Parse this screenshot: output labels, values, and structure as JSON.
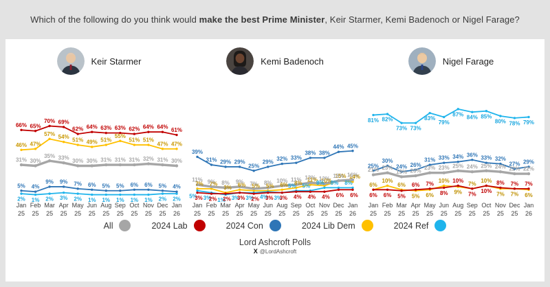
{
  "title": {
    "prefix": "Which of the following do you think would ",
    "bold": "make the best Prime Minister",
    "suffix": ", Keir Starmer, Kemi Badenoch or Nigel Farage?"
  },
  "legend": [
    {
      "label": "All",
      "color": "#a6a6a6"
    },
    {
      "label": "2024 Lab",
      "color": "#c00000"
    },
    {
      "label": "2024 Con",
      "color": "#2e75b6"
    },
    {
      "label": "2024 Lib Dem",
      "color": "#ffc000"
    },
    {
      "label": "2024 Ref",
      "color": "#1fb4ec"
    }
  ],
  "footer": {
    "brand": "Lord Ashcroft Polls",
    "x_icon": "X",
    "handle": "@LordAshcroft"
  },
  "chart_data": [
    {
      "type": "line",
      "title": "Keir Starmer",
      "x": [
        "Jan 25",
        "Feb 25",
        "Mar 25",
        "Apr 25",
        "May 25",
        "Jun 25",
        "Aug 25",
        "Sep 25",
        "Oct 25",
        "Nov 25",
        "Dec 25",
        "Jan 26"
      ],
      "ylim": [
        0,
        90
      ],
      "grid": false,
      "legend_position": "bottom",
      "series": [
        {
          "name": "2024 Lib Dem",
          "color": "#ffc000",
          "label_color": "#c99700",
          "label_pos": "above",
          "values": [
            46,
            47,
            57,
            54,
            51,
            49,
            51,
            55,
            51,
            51,
            47,
            47
          ]
        },
        {
          "name": "2024 Ref",
          "color": "#1fb4ec",
          "label_color": "#1aa7e0",
          "label_pos": "below",
          "values": [
            2,
            1,
            2,
            3,
            2,
            1,
            1,
            1,
            1,
            1,
            2,
            2
          ]
        },
        {
          "name": "2024 Lab",
          "color": "#c00000",
          "label_color": "#c00000",
          "label_pos": "above",
          "values": [
            66,
            65,
            70,
            69,
            62,
            64,
            63,
            63,
            62,
            64,
            64,
            61
          ]
        },
        {
          "name": "2024 Con",
          "color": "#2e75b6",
          "label_color": "#2e75b6",
          "label_pos": "above",
          "values": [
            5,
            4,
            9,
            9,
            7,
            6,
            5,
            5,
            6,
            6,
            5,
            4
          ]
        },
        {
          "name": "All",
          "color": "#a6a6a6",
          "label_color": "#a6a6a6",
          "label_pos": "above",
          "thick": true,
          "values": [
            31,
            30,
            35,
            33,
            30,
            30,
            31,
            31,
            31,
            32,
            31,
            30
          ]
        }
      ]
    },
    {
      "type": "line",
      "title": "Kemi Badenoch",
      "x": [
        "Jan 25",
        "Feb 25",
        "Mar 25",
        "Apr 25",
        "May 25",
        "Jun 25",
        "Aug 25",
        "Sep 25",
        "Oct 25",
        "Nov 25",
        "Dec 25",
        "Jan 26"
      ],
      "ylim": [
        0,
        90
      ],
      "grid": false,
      "legend_position": "bottom",
      "series": [
        {
          "name": "2024 Lib Dem",
          "color": "#ffc000",
          "label_color": "#bf9000",
          "label_pos": "above",
          "label_dx": 3,
          "values": [
            7,
            7,
            3,
            6,
            5,
            5,
            6,
            8,
            11,
            10,
            15,
            14
          ]
        },
        {
          "name": "2024 Ref",
          "color": "#1fb4ec",
          "label_color": "#1aa7e0",
          "label_pos": "below",
          "label_dx": -6,
          "label_sides": "bbbbbbbaaaaa",
          "values": [
            5,
            3,
            1,
            3,
            3,
            4,
            3,
            5,
            5,
            8,
            8,
            8
          ]
        },
        {
          "name": "2024 Lab",
          "color": "#c00000",
          "label_color": "#c00000",
          "label_pos": "below",
          "label_dx": 2,
          "values": [
            3,
            2,
            2,
            3,
            2,
            3,
            3,
            4,
            4,
            4,
            6,
            6
          ]
        },
        {
          "name": "2024 Con",
          "color": "#2e75b6",
          "label_color": "#2e75b6",
          "label_pos": "above",
          "values": [
            39,
            31,
            29,
            29,
            25,
            29,
            32,
            33,
            38,
            38,
            44,
            45
          ]
        },
        {
          "name": "All",
          "color": "#a6a6a6",
          "label_color": "#a6a6a6",
          "label_pos": "above",
          "thick": true,
          "values": [
            11,
            9,
            8,
            9,
            7,
            8,
            10,
            11,
            13,
            12,
            15,
            16
          ]
        }
      ]
    },
    {
      "type": "line",
      "title": "Nigel Farage",
      "x": [
        "Jan 25",
        "Feb 25",
        "Mar 25",
        "Apr 25",
        "May 25",
        "Jun 25",
        "Aug 25",
        "Sep 25",
        "Oct 25",
        "Nov 25",
        "Dec 25",
        "Jan 26"
      ],
      "ylim": [
        0,
        90
      ],
      "grid": false,
      "legend_position": "bottom",
      "series": [
        {
          "name": "2024 Lib Dem",
          "color": "#ffc000",
          "label_color": "#bf9000",
          "label_pos": "above",
          "label_sides": "aaabbabaabbb",
          "values": [
            6,
            10,
            6,
            5,
            6,
            10,
            9,
            7,
            10,
            7,
            7,
            6
          ]
        },
        {
          "name": "2024 Ref",
          "color": "#1fb4ec",
          "label_color": "#1aa7e0",
          "label_pos": "below",
          "values": [
            81,
            82,
            73,
            73,
            83,
            79,
            87,
            84,
            85,
            80,
            78,
            79
          ]
        },
        {
          "name": "2024 Lab",
          "color": "#c00000",
          "label_color": "#c00000",
          "label_pos": "above",
          "label_sides": "bbbaababbaaa",
          "values": [
            6,
            6,
            5,
            6,
            7,
            8,
            10,
            7,
            10,
            8,
            7,
            7
          ]
        },
        {
          "name": "2024 Con",
          "color": "#2e75b6",
          "label_color": "#2e75b6",
          "label_pos": "above",
          "values": [
            25,
            30,
            24,
            26,
            31,
            33,
            34,
            36,
            33,
            32,
            27,
            29
          ]
        },
        {
          "name": "All",
          "color": "#a6a6a6",
          "label_color": "#a6a6a6",
          "label_pos": "above",
          "thick": true,
          "values": [
            21,
            23,
            19,
            20,
            23,
            23,
            25,
            24,
            25,
            24,
            22,
            22
          ]
        }
      ]
    }
  ]
}
